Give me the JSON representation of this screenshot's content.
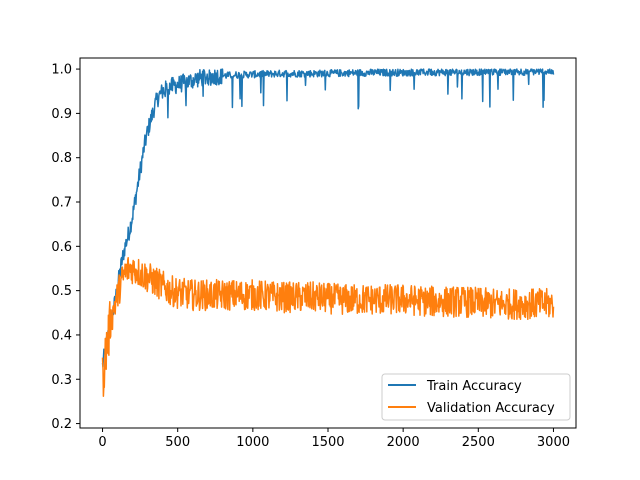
{
  "chart_data": {
    "type": "line",
    "title": "",
    "xlabel": "",
    "ylabel": "",
    "xlim": [
      -150,
      3150
    ],
    "ylim": [
      0.19,
      1.025
    ],
    "x_ticks": [
      0,
      500,
      1000,
      1500,
      2000,
      2500,
      3000
    ],
    "y_ticks": [
      0.2,
      0.3,
      0.4,
      0.5,
      0.6,
      0.7,
      0.8,
      0.9,
      1.0
    ],
    "x_tick_labels": [
      "0",
      "500",
      "1000",
      "1500",
      "2000",
      "2500",
      "3000"
    ],
    "y_tick_labels": [
      "0.2",
      "0.3",
      "0.4",
      "0.5",
      "0.6",
      "0.7",
      "0.8",
      "0.9",
      "1.0"
    ],
    "grid": false,
    "legend_position": "lower-right",
    "series": [
      {
        "name": "Train Accuracy",
        "color": "#1f77b4",
        "x": [
          0,
          25,
          50,
          75,
          100,
          125,
          150,
          175,
          200,
          225,
          250,
          275,
          300,
          325,
          350,
          375,
          400,
          450,
          500,
          550,
          600,
          650,
          700,
          800,
          900,
          1000,
          1200,
          1400,
          1600,
          1800,
          2000,
          2200,
          2400,
          2600,
          2800,
          3000
        ],
        "y": [
          0.33,
          0.38,
          0.42,
          0.46,
          0.51,
          0.56,
          0.6,
          0.63,
          0.67,
          0.72,
          0.77,
          0.82,
          0.86,
          0.89,
          0.92,
          0.94,
          0.95,
          0.96,
          0.965,
          0.97,
          0.975,
          0.98,
          0.982,
          0.985,
          0.987,
          0.988,
          0.99,
          0.99,
          0.991,
          0.992,
          0.992,
          0.993,
          0.993,
          0.994,
          0.994,
          0.995
        ]
      },
      {
        "name": "Validation Accuracy",
        "color": "#ff7f0e",
        "x": [
          0,
          25,
          50,
          75,
          100,
          125,
          150,
          175,
          200,
          225,
          250,
          300,
          350,
          400,
          450,
          500,
          600,
          700,
          800,
          900,
          1000,
          1200,
          1400,
          1600,
          1800,
          2000,
          2200,
          2400,
          2600,
          2800,
          3000
        ],
        "y": [
          0.3,
          0.37,
          0.42,
          0.46,
          0.49,
          0.52,
          0.54,
          0.55,
          0.55,
          0.545,
          0.54,
          0.53,
          0.52,
          0.51,
          0.5,
          0.495,
          0.49,
          0.49,
          0.49,
          0.49,
          0.49,
          0.485,
          0.485,
          0.48,
          0.48,
          0.48,
          0.475,
          0.475,
          0.47,
          0.47,
          0.47
        ]
      }
    ]
  }
}
